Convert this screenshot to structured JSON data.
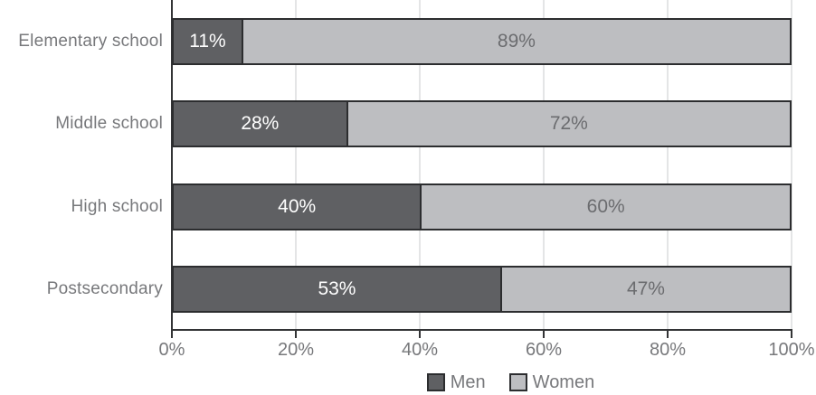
{
  "chart_data": {
    "type": "bar",
    "orientation": "horizontal",
    "stacked": true,
    "title": "",
    "xlabel": "",
    "ylabel": "",
    "categories": [
      "Elementary school",
      "Middle school",
      "High school",
      "Postsecondary"
    ],
    "series": [
      {
        "name": "Men",
        "color": "#5f6063",
        "text_color": "#ffffff",
        "values": [
          11,
          28,
          40,
          53
        ]
      },
      {
        "name": "Women",
        "color": "#bdbec1",
        "text_color": "#6b6c6f",
        "values": [
          89,
          72,
          60,
          47
        ]
      }
    ],
    "value_suffix": "%",
    "x_ticks": [
      "0%",
      "20%",
      "40%",
      "60%",
      "80%",
      "100%"
    ],
    "xlim": [
      0,
      100
    ],
    "grid": true,
    "legend_position": "bottom-center"
  },
  "styles": {
    "bar_border": "#2c2d2f",
    "axis_color": "#333436",
    "gridline_color": "#e4e5e6",
    "label_color": "#77787b"
  }
}
